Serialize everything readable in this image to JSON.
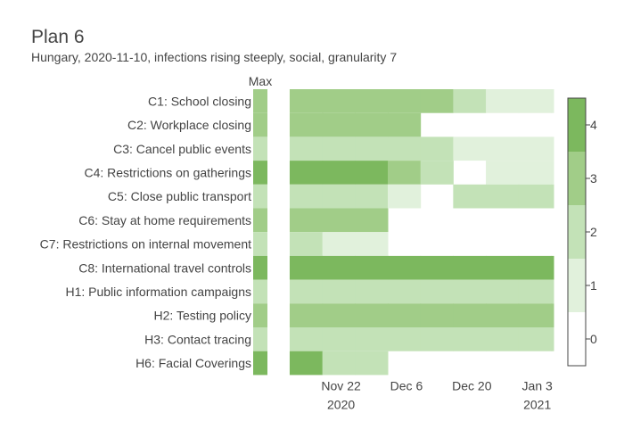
{
  "chart_data": {
    "type": "heatmap",
    "title": "Plan 6",
    "subtitle": "Hungary, 2020-11-10, infections rising steeply, social, granularity 7",
    "max_column_label": "Max",
    "rows": [
      "C1: School closing",
      "C2: Workplace closing",
      "C3: Cancel public events",
      "C4: Restrictions on gatherings",
      "C5: Close public transport",
      "C6: Stay at home requirements",
      "C7: Restrictions on internal movement",
      "C8: International travel controls",
      "H1: Public information campaigns",
      "H2: Testing policy",
      "H3: Contact tracing",
      "H6: Facial Coverings"
    ],
    "x_ticks": [
      {
        "label": "Nov 22",
        "sublabel": "2020",
        "date": "2020-11-22"
      },
      {
        "label": "Dec 6",
        "sublabel": "",
        "date": "2020-12-06"
      },
      {
        "label": "Dec 20",
        "sublabel": "",
        "date": "2020-12-20"
      },
      {
        "label": "Jan 3",
        "sublabel": "2021",
        "date": "2021-01-03"
      }
    ],
    "week_start_dates": [
      "2020-11-11",
      "2020-11-18",
      "2020-11-25",
      "2020-12-02",
      "2020-12-09",
      "2020-12-16",
      "2020-12-23",
      "2020-12-30",
      "2021-01-06"
    ],
    "max_values": [
      3,
      3,
      2,
      4,
      2,
      3,
      2,
      4,
      2,
      3,
      2,
      4
    ],
    "values": [
      [
        3,
        3,
        3,
        3,
        3,
        2,
        1,
        1,
        1
      ],
      [
        3,
        3,
        3,
        3,
        null,
        null,
        null,
        null,
        null
      ],
      [
        2,
        2,
        2,
        2,
        2,
        1,
        1,
        1,
        1
      ],
      [
        4,
        4,
        4,
        3,
        2,
        null,
        1,
        1,
        1
      ],
      [
        2,
        2,
        2,
        1,
        null,
        2,
        2,
        2,
        2
      ],
      [
        3,
        3,
        3,
        null,
        null,
        null,
        null,
        null,
        null
      ],
      [
        2,
        1,
        1,
        null,
        null,
        null,
        null,
        null,
        null
      ],
      [
        4,
        4,
        4,
        4,
        4,
        4,
        4,
        4,
        4
      ],
      [
        2,
        2,
        2,
        2,
        2,
        2,
        2,
        2,
        2
      ],
      [
        3,
        3,
        3,
        3,
        3,
        3,
        3,
        3,
        3
      ],
      [
        2,
        2,
        2,
        2,
        2,
        2,
        2,
        2,
        2
      ],
      [
        4,
        2,
        2,
        null,
        null,
        null,
        null,
        null,
        null
      ]
    ],
    "colorscale": {
      "0": "#ffffff",
      "1": "#e1f1dc",
      "2": "#c3e2b7",
      "3": "#a1cd88",
      "4": "#7cb85e"
    },
    "colorbar_ticks": [
      "0",
      "1",
      "2",
      "3",
      "4"
    ],
    "zrange": [
      0,
      4
    ]
  }
}
